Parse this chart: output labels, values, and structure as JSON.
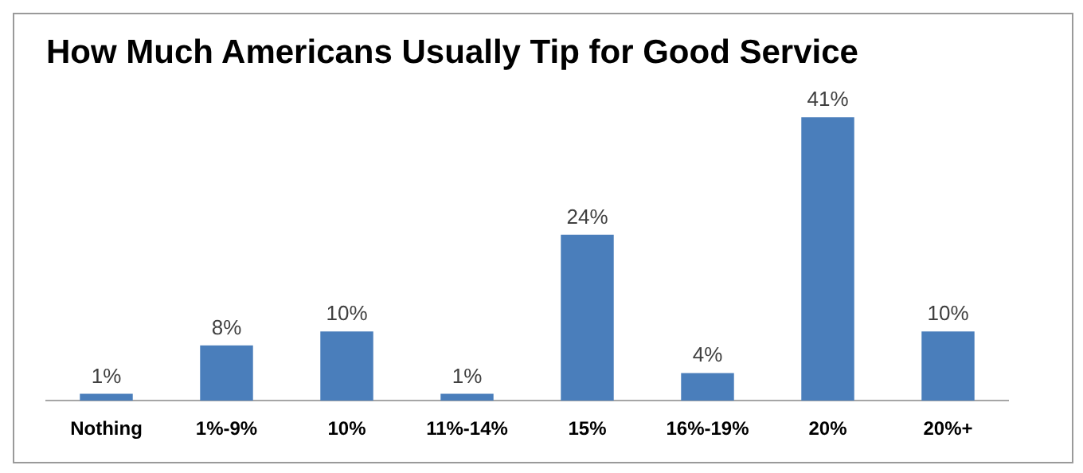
{
  "chart_data": {
    "type": "bar",
    "title": "How Much Americans Usually Tip for Good Service",
    "categories": [
      "Nothing",
      "1%-9%",
      "10%",
      "11%-14%",
      "15%",
      "16%-19%",
      "20%",
      "20%+"
    ],
    "values": [
      1,
      8,
      10,
      1,
      24,
      4,
      41,
      10
    ],
    "value_labels": [
      "1%",
      "8%",
      "10%",
      "1%",
      "24%",
      "4%",
      "41%",
      "10%"
    ],
    "color": "#4a7ebb",
    "legend": false
  }
}
